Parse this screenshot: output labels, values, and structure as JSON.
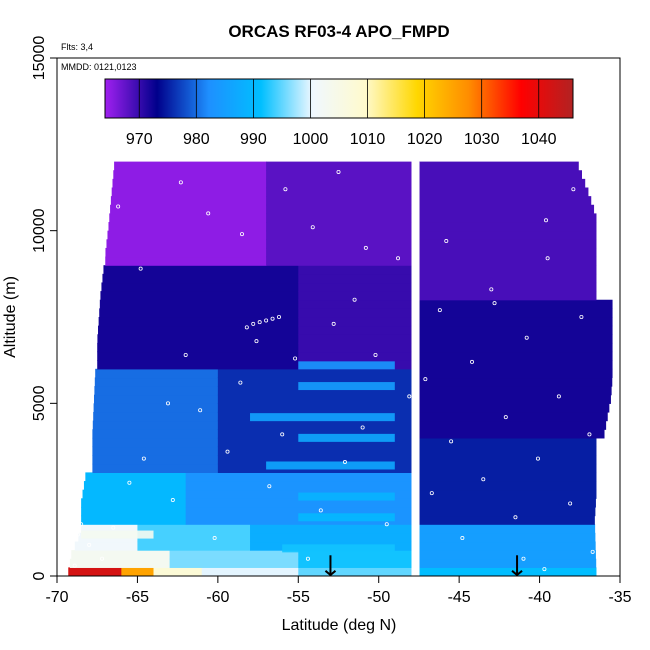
{
  "chart_data": {
    "type": "heatmap",
    "title": "ORCAS RF03-4 APO_FMPD",
    "subtitle_flights": "Flts: 3,4",
    "subtitle_dates": "MMDD: 0121,0123",
    "xlabel": "Latitude (deg N)",
    "ylabel": "Altitude (m)",
    "xlim": [
      -70,
      -35
    ],
    "ylim": [
      0,
      15000
    ],
    "x_ticks": [
      -70,
      -65,
      -60,
      -55,
      -50,
      -45,
      -40,
      -35
    ],
    "y_ticks": [
      0,
      5000,
      10000,
      15000
    ],
    "colorbar": {
      "range": [
        964,
        1046
      ],
      "ticks": [
        970,
        980,
        990,
        1000,
        1010,
        1020,
        1030,
        1040
      ],
      "stops": [
        "#a020f0",
        "#00008b",
        "#1e90ff",
        "#00bfff",
        "#f0f8ff",
        "#fffacd",
        "#ffd700",
        "#ff8c00",
        "#ff0000",
        "#b22222"
      ]
    },
    "data_extent_left": [
      [
        0,
        -69.3
      ],
      [
        400,
        -69.2
      ],
      [
        1200,
        -68.5
      ],
      [
        2000,
        -68.5
      ],
      [
        4000,
        -67.8
      ],
      [
        6000,
        -67.6
      ],
      [
        8000,
        -67.3
      ],
      [
        10000,
        -66.8
      ],
      [
        12000,
        -66.4
      ]
    ],
    "data_extent_right": [
      [
        0,
        -36.5
      ],
      [
        1500,
        -36.6
      ],
      [
        3000,
        -36.4
      ],
      [
        5000,
        -35.6
      ],
      [
        8000,
        -35.1
      ],
      [
        9000,
        -35.6
      ],
      [
        11000,
        -37.0
      ],
      [
        12000,
        -37.8
      ]
    ],
    "field_bands": [
      {
        "alt_range": [
          0,
          250
        ],
        "lat_range": [
          -69.3,
          -66
        ],
        "value": 1042
      },
      {
        "alt_range": [
          0,
          250
        ],
        "lat_range": [
          -66,
          -64
        ],
        "value": 1025
      },
      {
        "alt_range": [
          0,
          250
        ],
        "lat_range": [
          -64,
          -61
        ],
        "value": 1008
      },
      {
        "alt_range": [
          0,
          250
        ],
        "lat_range": [
          -61,
          -55
        ],
        "value": 1000
      },
      {
        "alt_range": [
          0,
          250
        ],
        "lat_range": [
          -55,
          -48
        ],
        "value": 995
      },
      {
        "alt_range": [
          250,
          750
        ],
        "lat_range": [
          -69.2,
          -63
        ],
        "value": 1003
      },
      {
        "alt_range": [
          250,
          750
        ],
        "lat_range": [
          -63,
          -55
        ],
        "value": 996
      },
      {
        "alt_range": [
          250,
          750
        ],
        "lat_range": [
          -55,
          -48
        ],
        "value": 992
      },
      {
        "alt_range": [
          750,
          1500
        ],
        "lat_range": [
          -69,
          -65
        ],
        "value": 1001
      },
      {
        "alt_range": [
          750,
          1500
        ],
        "lat_range": [
          -65,
          -58
        ],
        "value": 994
      },
      {
        "alt_range": [
          750,
          1500
        ],
        "lat_range": [
          -58,
          -48
        ],
        "value": 988
      },
      {
        "alt_range": [
          1500,
          3000
        ],
        "lat_range": [
          -68.5,
          -62
        ],
        "value": 990
      },
      {
        "alt_range": [
          1500,
          3000
        ],
        "lat_range": [
          -62,
          -48
        ],
        "value": 983
      },
      {
        "alt_range": [
          3000,
          6000
        ],
        "lat_range": [
          -67.8,
          -60
        ],
        "value": 980
      },
      {
        "alt_range": [
          3000,
          6000
        ],
        "lat_range": [
          -60,
          -48
        ],
        "value": 976
      },
      {
        "alt_range": [
          6000,
          9000
        ],
        "lat_range": [
          -67.5,
          -55
        ],
        "value": 972
      },
      {
        "alt_range": [
          6000,
          9000
        ],
        "lat_range": [
          -55,
          -48
        ],
        "value": 970
      },
      {
        "alt_range": [
          9000,
          12000
        ],
        "lat_range": [
          -67,
          -57
        ],
        "value": 965
      },
      {
        "alt_range": [
          9000,
          12000
        ],
        "lat_range": [
          -57,
          -48
        ],
        "value": 968
      },
      {
        "alt_range": [
          0,
          250
        ],
        "lat_range": [
          -47.5,
          -36.5
        ],
        "value": 991
      },
      {
        "alt_range": [
          250,
          1500
        ],
        "lat_range": [
          -47.5,
          -36.5
        ],
        "value": 985
      },
      {
        "alt_range": [
          1500,
          4000
        ],
        "lat_range": [
          -47.5,
          -36.5
        ],
        "value": 975
      },
      {
        "alt_range": [
          4000,
          8000
        ],
        "lat_range": [
          -47.5,
          -35.5
        ],
        "value": 972
      },
      {
        "alt_range": [
          8000,
          12000
        ],
        "lat_range": [
          -47.5,
          -36.5
        ],
        "value": 969
      }
    ],
    "streaks": [
      {
        "alt": 800,
        "lat_range": [
          -56,
          -49
        ],
        "value": 992
      },
      {
        "alt": 1700,
        "lat_range": [
          -55,
          -49
        ],
        "value": 990
      },
      {
        "alt": 2300,
        "lat_range": [
          -55,
          -49
        ],
        "value": 989
      },
      {
        "alt": 3200,
        "lat_range": [
          -57,
          -49
        ],
        "value": 987
      },
      {
        "alt": 4000,
        "lat_range": [
          -55,
          -49
        ],
        "value": 987
      },
      {
        "alt": 4600,
        "lat_range": [
          -58,
          -49
        ],
        "value": 986
      },
      {
        "alt": 5500,
        "lat_range": [
          -55,
          -49
        ],
        "value": 985
      },
      {
        "alt": 6100,
        "lat_range": [
          -55,
          -49
        ],
        "value": 984
      },
      {
        "alt": 1200,
        "lat_range": [
          -68.5,
          -64
        ],
        "value": 1003
      }
    ],
    "gap_line_latitude": -47.5,
    "arrow_latitudes": [
      -53,
      -41.4
    ],
    "sample_points": [
      [
        -68.9,
        300
      ],
      [
        -68.7,
        1200
      ],
      [
        -68.5,
        1500
      ],
      [
        -68,
        900
      ],
      [
        -67.2,
        500
      ],
      [
        -66.5,
        1400
      ],
      [
        -65.5,
        2700
      ],
      [
        -64.6,
        3400
      ],
      [
        -63.1,
        5000
      ],
      [
        -62.8,
        2200
      ],
      [
        -62,
        6400
      ],
      [
        -61.1,
        4800
      ],
      [
        -60.2,
        1100
      ],
      [
        -59.4,
        3600
      ],
      [
        -58.6,
        5600
      ],
      [
        -57.8,
        7300
      ],
      [
        -57.4,
        7350
      ],
      [
        -57,
        7400
      ],
      [
        -56.6,
        7450
      ],
      [
        -56.2,
        7500
      ],
      [
        -58.2,
        7200
      ],
      [
        -57.6,
        6800
      ],
      [
        -56.8,
        2600
      ],
      [
        -56,
        4100
      ],
      [
        -55.2,
        6300
      ],
      [
        -54.4,
        500
      ],
      [
        -53.6,
        1900
      ],
      [
        -52.8,
        7300
      ],
      [
        -52.1,
        3300
      ],
      [
        -51.5,
        8000
      ],
      [
        -51,
        4300
      ],
      [
        -50.2,
        6400
      ],
      [
        -49.5,
        1500
      ],
      [
        -48.8,
        9200
      ],
      [
        -48.1,
        5200
      ],
      [
        -62.3,
        11400
      ],
      [
        -60.6,
        10500
      ],
      [
        -58.5,
        9900
      ],
      [
        -55.8,
        11200
      ],
      [
        -54.1,
        10100
      ],
      [
        -52.5,
        11700
      ],
      [
        -50.8,
        9500
      ],
      [
        -64.8,
        8900
      ],
      [
        -66.2,
        10700
      ],
      [
        -67,
        10000
      ],
      [
        -46.2,
        7700
      ],
      [
        -45.5,
        3900
      ],
      [
        -44.8,
        1100
      ],
      [
        -44.2,
        6200
      ],
      [
        -43.5,
        2800
      ],
      [
        -42.8,
        7900
      ],
      [
        -42.1,
        4600
      ],
      [
        -41.5,
        1700
      ],
      [
        -40.8,
        6900
      ],
      [
        -40.1,
        3400
      ],
      [
        -39.5,
        9200
      ],
      [
        -38.8,
        5200
      ],
      [
        -38.1,
        2100
      ],
      [
        -37.4,
        7500
      ],
      [
        -36.9,
        4100
      ],
      [
        -43,
        8300
      ],
      [
        -45.8,
        9700
      ],
      [
        -39.6,
        10300
      ],
      [
        -37.9,
        11200
      ],
      [
        -47.1,
        5700
      ],
      [
        -46.7,
        2400
      ],
      [
        -41,
        500
      ],
      [
        -39.7,
        200
      ],
      [
        -36.7,
        700
      ]
    ]
  }
}
